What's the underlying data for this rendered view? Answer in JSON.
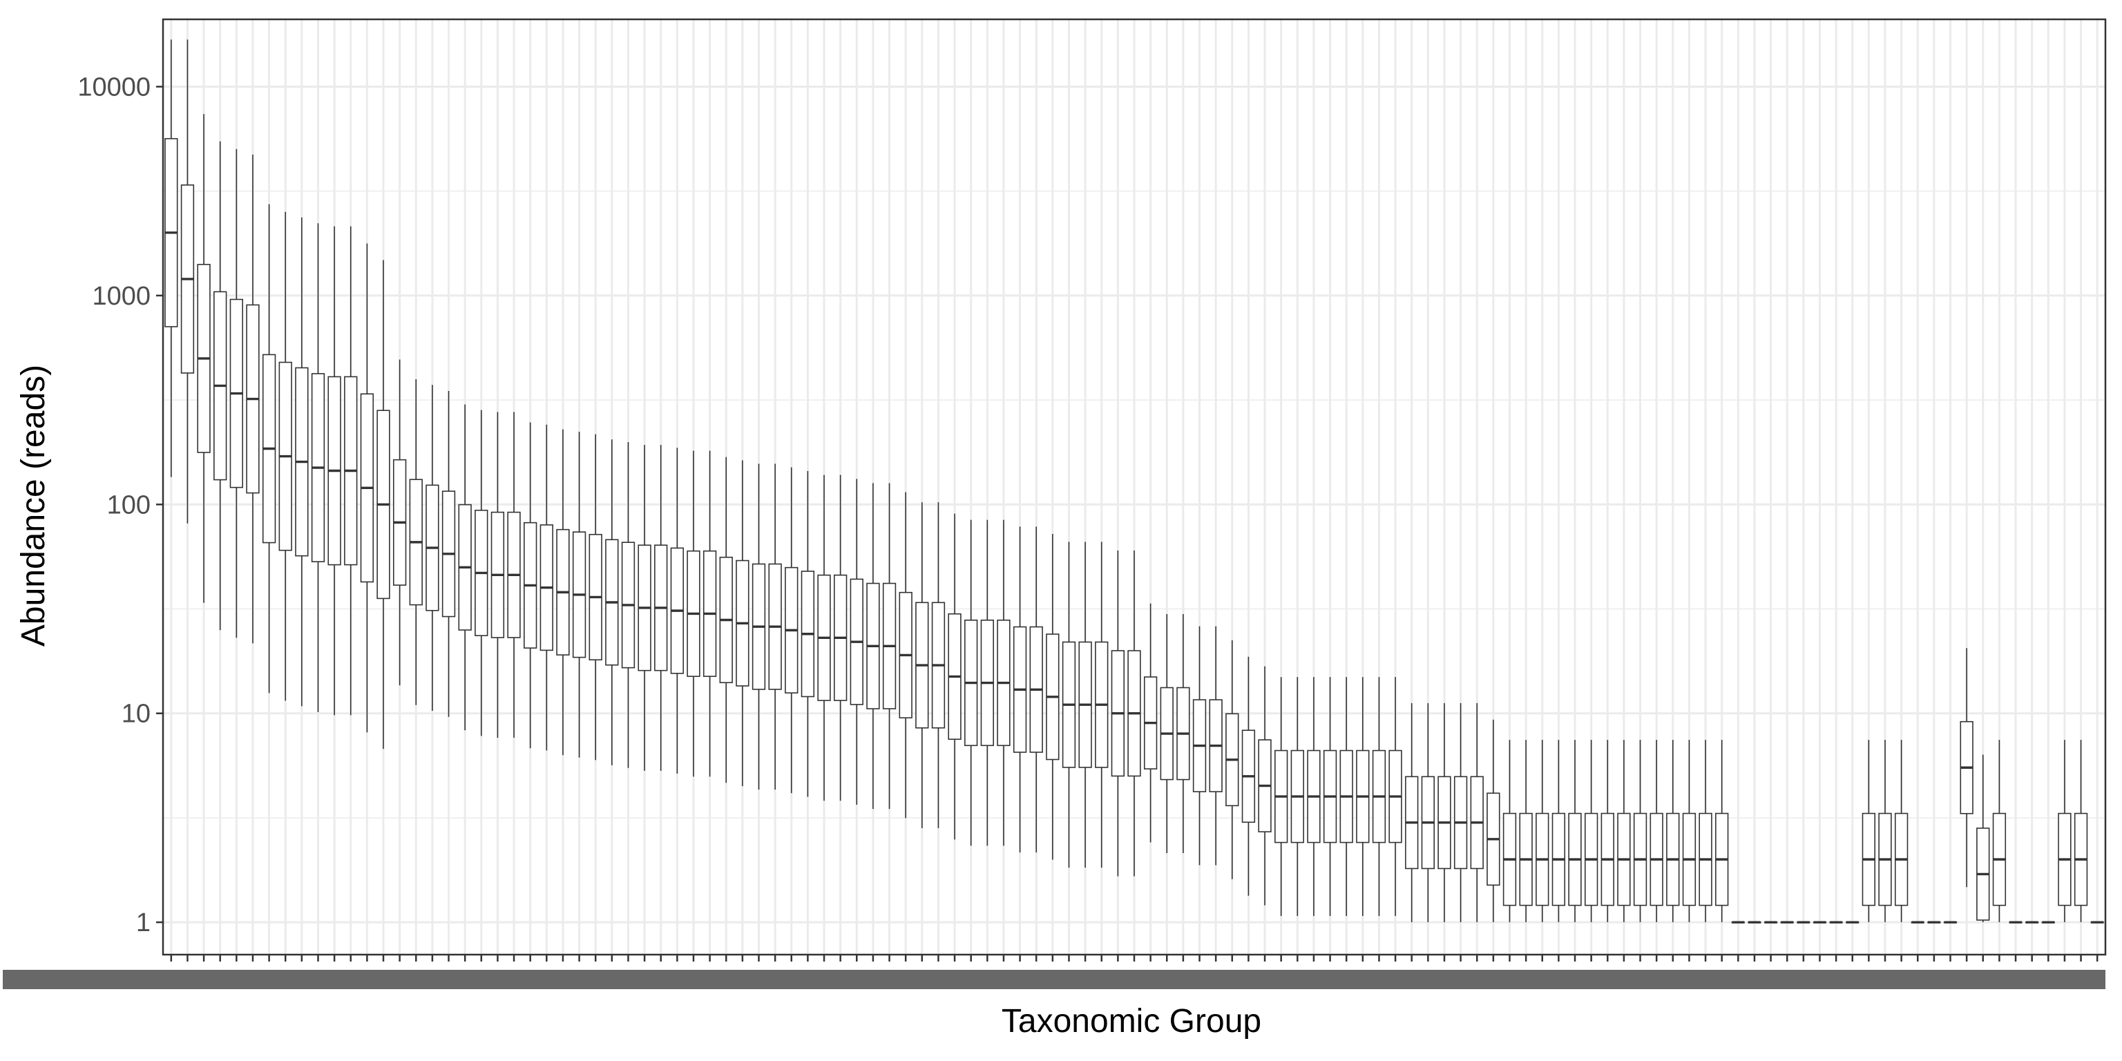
{
  "chart_data": {
    "type": "box",
    "title": "",
    "xlabel": "Taxonomic Group",
    "ylabel": "Abundance (reads)",
    "y_scale": "log10",
    "ylim": [
      0.7,
      21000
    ],
    "y_ticks": [
      1,
      10,
      100,
      1000,
      10000
    ],
    "y_tick_labels": [
      "1",
      "10",
      "100",
      "1000",
      "10000"
    ],
    "grid": true,
    "legend": "none",
    "x_tick_labels_legible": false,
    "categories_count": 119,
    "box_fill": "#ffffff",
    "box_stroke": "#333333",
    "panel_border": "#333333",
    "grid_color": "#ebebeb",
    "medians": [
      2000,
      1200,
      500,
      370,
      340,
      320,
      185,
      170,
      160,
      150,
      145,
      145,
      120,
      100,
      82,
      66,
      62,
      58,
      50,
      47,
      46,
      46,
      41,
      40,
      38,
      37,
      36,
      34,
      33,
      32,
      32,
      31,
      30,
      30,
      28,
      27,
      26,
      26,
      25,
      24,
      23,
      23,
      22,
      21,
      21,
      19,
      17,
      17,
      15,
      14,
      14,
      14,
      13,
      13,
      12,
      11,
      11,
      11,
      10,
      10,
      9,
      8,
      8,
      7,
      7,
      6,
      5,
      4.5,
      4,
      4,
      4,
      4,
      4,
      4,
      4,
      4,
      3,
      3,
      3,
      3,
      3,
      2.5,
      2,
      2,
      2,
      2,
      2,
      2,
      2,
      2,
      2,
      2,
      2,
      2,
      2,
      2,
      1,
      1,
      1,
      1,
      1,
      1,
      1,
      1,
      2,
      2,
      2,
      1,
      1,
      1,
      5.5,
      1.7,
      2,
      1,
      1,
      1,
      2,
      2,
      1
    ]
  }
}
